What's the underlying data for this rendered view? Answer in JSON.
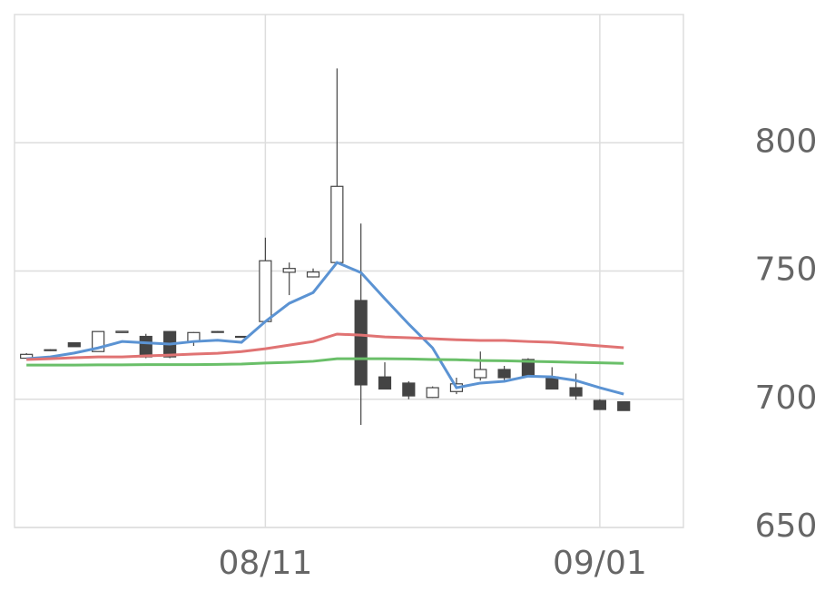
{
  "chart_data": {
    "type": "candlestick",
    "categories": [
      null,
      null,
      null,
      null,
      null,
      null,
      null,
      null,
      null,
      null,
      "08/11",
      null,
      null,
      null,
      null,
      null,
      null,
      null,
      null,
      null,
      null,
      null,
      null,
      null,
      "09/01",
      null
    ],
    "open": [
      716,
      719,
      722,
      718.6,
      726,
      724.5,
      726.4,
      722.5,
      726.2,
      724.5,
      730.3,
      749.5,
      747.7,
      753.3,
      738.5,
      708.7,
      706.3,
      700.7,
      703,
      708.4,
      711.6,
      715.5,
      708.7,
      704.5,
      699.5,
      699
    ],
    "high": [
      718,
      719.5,
      722,
      726.4,
      726.6,
      725.5,
      726.5,
      726.2,
      726.6,
      724.6,
      763,
      753.3,
      751,
      829,
      768.5,
      714.4,
      707,
      705,
      708.4,
      718.6,
      713,
      716,
      712.5,
      710,
      700,
      699
    ],
    "low": [
      716,
      718.8,
      720.5,
      718.6,
      725.9,
      716,
      716,
      720.8,
      726.1,
      724.1,
      730,
      740.6,
      747.5,
      753,
      690,
      704,
      700,
      700.5,
      702,
      707.3,
      707.5,
      709,
      704,
      699.8,
      696,
      695.6
    ],
    "close": [
      717.5,
      719.3,
      720.5,
      726.4,
      726.5,
      716.5,
      716.5,
      726,
      726.4,
      724.2,
      754,
      751,
      749.6,
      783,
      705.6,
      704,
      701.3,
      704.5,
      706,
      711.6,
      708.4,
      709,
      704,
      701.3,
      696,
      695.6
    ],
    "up_color": "#ffffff",
    "down_color": "#444444",
    "edge_color": "#444444",
    "lines": [
      {
        "color": "#5b93d3",
        "values": [
          715.8,
          716.5,
          718,
          720,
          722.5,
          722,
          721.5,
          722.5,
          723,
          722.2,
          730.3,
          737.4,
          741.6,
          753.3,
          749.4,
          739.2,
          729.3,
          720,
          704.5,
          706.3,
          707,
          709,
          708.7,
          707.3,
          704.5,
          702
        ]
      },
      {
        "color": "#e07373",
        "values": [
          715.5,
          715.8,
          716.2,
          716.5,
          716.5,
          716.9,
          717.2,
          717.6,
          717.9,
          718.6,
          719.7,
          721.1,
          722.5,
          725.4,
          725,
          724.3,
          724,
          723.6,
          723.2,
          722.9,
          722.9,
          722.5,
          722.2,
          721.5,
          720.8,
          720.1
        ]
      },
      {
        "color": "#6abf69",
        "values": [
          713.3,
          713.3,
          713.3,
          713.4,
          713.4,
          713.5,
          713.5,
          713.5,
          713.6,
          713.7,
          714.1,
          714.4,
          714.8,
          715.8,
          715.8,
          715.8,
          715.7,
          715.5,
          715.4,
          715.1,
          715,
          714.8,
          714.6,
          714.4,
          714.2,
          714
        ]
      }
    ],
    "ylim": [
      650,
      850
    ],
    "yticks": [
      650,
      700,
      750,
      800
    ],
    "grid": true
  }
}
